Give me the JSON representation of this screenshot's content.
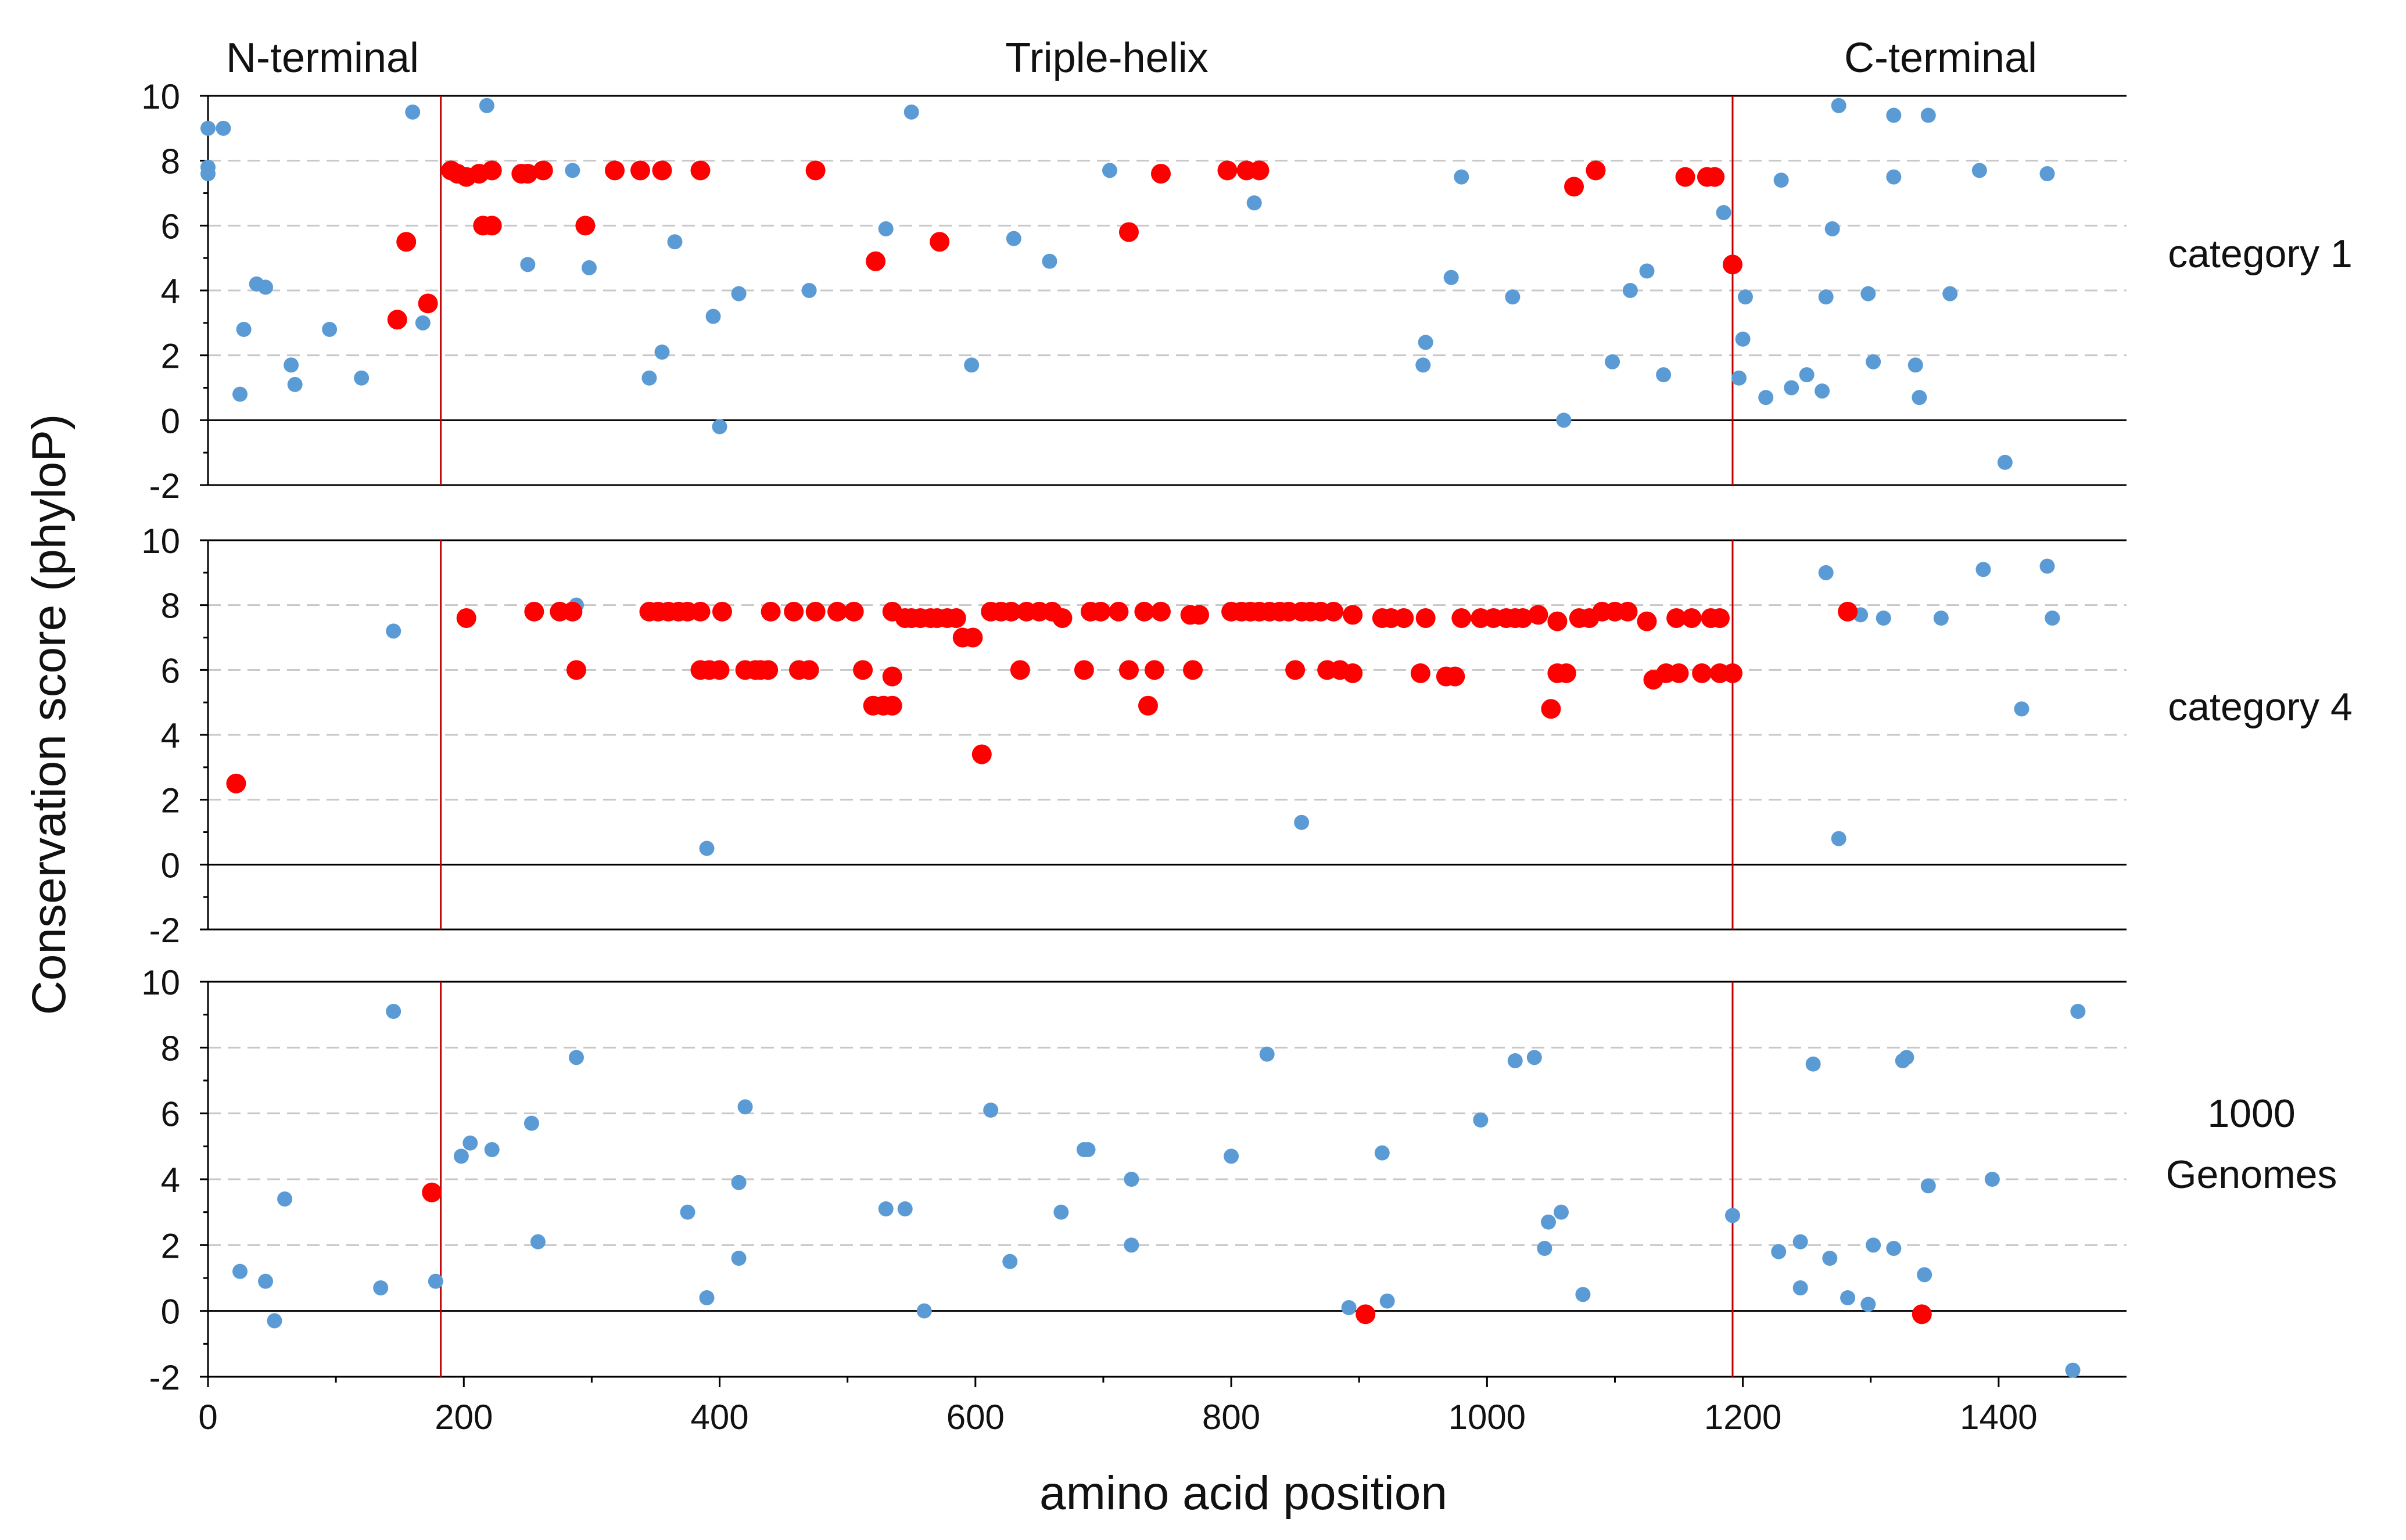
{
  "chart_data": {
    "type": "scatter",
    "ylabel": "Conservation score (phyloP)",
    "xlabel": "amino acid position",
    "x_ticks": [
      0,
      200,
      400,
      600,
      800,
      1000,
      1200,
      1400
    ],
    "x_tick_labels": [
      "0",
      "200",
      "400",
      "600",
      "800",
      "1000",
      "1200",
      "1400"
    ],
    "xlim": [
      0,
      1500
    ],
    "y_ticks": [
      -2,
      0,
      2,
      4,
      6,
      8,
      10
    ],
    "y_tick_labels": [
      "-2",
      "0",
      "2",
      "4",
      "6",
      "8",
      "10"
    ],
    "ylim": [
      -2,
      10
    ],
    "region_boundaries": [
      182,
      1192
    ],
    "regions": [
      "N-terminal",
      "Triple-helix",
      "C-terminal"
    ],
    "colors": {
      "blue": "#5b9bd5",
      "red": "#ff0000",
      "boundary": "#c00000",
      "grid": "#c8c8c8"
    },
    "panels": [
      {
        "label": "category 1",
        "blue": [
          [
            0,
            7.8
          ],
          [
            0,
            7.6
          ],
          [
            0,
            9.0
          ],
          [
            12,
            9.0
          ],
          [
            25,
            0.8
          ],
          [
            28,
            2.8
          ],
          [
            38,
            4.2
          ],
          [
            45,
            4.1
          ],
          [
            65,
            1.7
          ],
          [
            68,
            1.1
          ],
          [
            95,
            2.8
          ],
          [
            120,
            1.3
          ],
          [
            160,
            9.5
          ],
          [
            168,
            3.0
          ],
          [
            218,
            9.7
          ],
          [
            250,
            4.8
          ],
          [
            285,
            7.7
          ],
          [
            298,
            4.7
          ],
          [
            345,
            1.3
          ],
          [
            355,
            2.1
          ],
          [
            365,
            5.5
          ],
          [
            395,
            3.2
          ],
          [
            400,
            -0.2
          ],
          [
            415,
            3.9
          ],
          [
            470,
            4.0
          ],
          [
            530,
            5.9
          ],
          [
            550,
            9.5
          ],
          [
            597,
            1.7
          ],
          [
            630,
            5.6
          ],
          [
            658,
            4.9
          ],
          [
            705,
            7.7
          ],
          [
            818,
            6.7
          ],
          [
            950,
            1.7
          ],
          [
            952,
            2.4
          ],
          [
            972,
            4.4
          ],
          [
            980,
            7.5
          ],
          [
            1020,
            3.8
          ],
          [
            1060,
            0.0
          ],
          [
            1098,
            1.8
          ],
          [
            1112,
            4.0
          ],
          [
            1125,
            4.6
          ],
          [
            1138,
            1.4
          ],
          [
            1185,
            6.4
          ],
          [
            1197,
            1.3
          ],
          [
            1200,
            2.5
          ],
          [
            1202,
            3.8
          ],
          [
            1218,
            0.7
          ],
          [
            1230,
            7.4
          ],
          [
            1238,
            1.0
          ],
          [
            1250,
            1.4
          ],
          [
            1262,
            0.9
          ],
          [
            1265,
            3.8
          ],
          [
            1270,
            5.9
          ],
          [
            1275,
            9.7
          ],
          [
            1298,
            3.9
          ],
          [
            1302,
            1.8
          ],
          [
            1318,
            7.5
          ],
          [
            1318,
            9.4
          ],
          [
            1335,
            1.7
          ],
          [
            1338,
            0.7
          ],
          [
            1345,
            9.4
          ],
          [
            1362,
            3.9
          ],
          [
            1385,
            7.7
          ],
          [
            1405,
            -1.3
          ],
          [
            1438,
            7.6
          ]
        ],
        "red": [
          [
            148,
            3.1
          ],
          [
            155,
            5.5
          ],
          [
            172,
            3.6
          ],
          [
            190,
            7.7
          ],
          [
            195,
            7.6
          ],
          [
            202,
            7.5
          ],
          [
            212,
            7.6
          ],
          [
            215,
            6.0
          ],
          [
            222,
            6.0
          ],
          [
            222,
            7.7
          ],
          [
            245,
            7.6
          ],
          [
            250,
            7.6
          ],
          [
            262,
            7.7
          ],
          [
            295,
            6.0
          ],
          [
            318,
            7.7
          ],
          [
            338,
            7.7
          ],
          [
            355,
            7.7
          ],
          [
            385,
            7.7
          ],
          [
            475,
            7.7
          ],
          [
            522,
            4.9
          ],
          [
            572,
            5.5
          ],
          [
            720,
            5.8
          ],
          [
            745,
            7.6
          ],
          [
            797,
            7.7
          ],
          [
            812,
            7.7
          ],
          [
            822,
            7.7
          ],
          [
            1068,
            7.2
          ],
          [
            1085,
            7.7
          ],
          [
            1155,
            7.5
          ],
          [
            1172,
            7.5
          ],
          [
            1178,
            7.5
          ],
          [
            1192,
            4.8
          ]
        ]
      },
      {
        "label": "category 4",
        "blue": [
          [
            145,
            7.2
          ],
          [
            288,
            8.0
          ],
          [
            390,
            0.5
          ],
          [
            855,
            1.3
          ],
          [
            1265,
            9.0
          ],
          [
            1275,
            0.8
          ],
          [
            1292,
            7.7
          ],
          [
            1310,
            7.6
          ],
          [
            1355,
            7.6
          ],
          [
            1388,
            9.1
          ],
          [
            1418,
            4.8
          ],
          [
            1438,
            9.2
          ],
          [
            1442,
            7.6
          ]
        ],
        "red": [
          [
            22,
            2.5
          ],
          [
            202,
            7.6
          ],
          [
            255,
            7.8
          ],
          [
            275,
            7.8
          ],
          [
            285,
            7.8
          ],
          [
            288,
            6.0
          ],
          [
            345,
            7.8
          ],
          [
            352,
            7.8
          ],
          [
            360,
            7.8
          ],
          [
            368,
            7.8
          ],
          [
            375,
            7.8
          ],
          [
            385,
            7.8
          ],
          [
            385,
            6.0
          ],
          [
            392,
            6.0
          ],
          [
            400,
            6.0
          ],
          [
            402,
            7.8
          ],
          [
            420,
            6.0
          ],
          [
            428,
            6.0
          ],
          [
            432,
            6.0
          ],
          [
            438,
            6.0
          ],
          [
            440,
            7.8
          ],
          [
            458,
            7.8
          ],
          [
            462,
            6.0
          ],
          [
            470,
            6.0
          ],
          [
            475,
            7.8
          ],
          [
            492,
            7.8
          ],
          [
            505,
            7.8
          ],
          [
            512,
            6.0
          ],
          [
            520,
            4.9
          ],
          [
            528,
            4.9
          ],
          [
            535,
            4.9
          ],
          [
            535,
            5.8
          ],
          [
            535,
            7.8
          ],
          [
            545,
            7.6
          ],
          [
            550,
            7.6
          ],
          [
            557,
            7.6
          ],
          [
            565,
            7.6
          ],
          [
            570,
            7.6
          ],
          [
            578,
            7.6
          ],
          [
            585,
            7.6
          ],
          [
            590,
            7.0
          ],
          [
            598,
            7.0
          ],
          [
            605,
            3.4
          ],
          [
            612,
            7.8
          ],
          [
            620,
            7.8
          ],
          [
            628,
            7.8
          ],
          [
            635,
            6.0
          ],
          [
            640,
            7.8
          ],
          [
            650,
            7.8
          ],
          [
            660,
            7.8
          ],
          [
            668,
            7.6
          ],
          [
            685,
            6.0
          ],
          [
            690,
            7.8
          ],
          [
            698,
            7.8
          ],
          [
            712,
            7.8
          ],
          [
            720,
            6.0
          ],
          [
            732,
            7.8
          ],
          [
            735,
            4.9
          ],
          [
            740,
            6.0
          ],
          [
            745,
            7.8
          ],
          [
            768,
            7.7
          ],
          [
            770,
            6.0
          ],
          [
            775,
            7.7
          ],
          [
            800,
            7.8
          ],
          [
            808,
            7.8
          ],
          [
            815,
            7.8
          ],
          [
            822,
            7.8
          ],
          [
            830,
            7.8
          ],
          [
            838,
            7.8
          ],
          [
            845,
            7.8
          ],
          [
            850,
            6.0
          ],
          [
            855,
            7.8
          ],
          [
            862,
            7.8
          ],
          [
            870,
            7.8
          ],
          [
            875,
            6.0
          ],
          [
            880,
            7.8
          ],
          [
            885,
            6.0
          ],
          [
            895,
            5.9
          ],
          [
            895,
            7.7
          ],
          [
            918,
            7.6
          ],
          [
            925,
            7.6
          ],
          [
            935,
            7.6
          ],
          [
            948,
            5.9
          ],
          [
            952,
            7.6
          ],
          [
            968,
            5.8
          ],
          [
            975,
            5.8
          ],
          [
            980,
            7.6
          ],
          [
            995,
            7.6
          ],
          [
            1005,
            7.6
          ],
          [
            1015,
            7.6
          ],
          [
            1022,
            7.6
          ],
          [
            1028,
            7.6
          ],
          [
            1040,
            7.7
          ],
          [
            1050,
            4.8
          ],
          [
            1055,
            5.9
          ],
          [
            1055,
            7.5
          ],
          [
            1062,
            5.9
          ],
          [
            1072,
            7.6
          ],
          [
            1080,
            7.6
          ],
          [
            1090,
            7.8
          ],
          [
            1100,
            7.8
          ],
          [
            1110,
            7.8
          ],
          [
            1125,
            7.5
          ],
          [
            1130,
            5.7
          ],
          [
            1140,
            5.9
          ],
          [
            1148,
            7.6
          ],
          [
            1150,
            5.9
          ],
          [
            1160,
            7.6
          ],
          [
            1168,
            5.9
          ],
          [
            1175,
            7.6
          ],
          [
            1182,
            7.6
          ],
          [
            1182,
            5.9
          ],
          [
            1192,
            5.9
          ],
          [
            1282,
            7.8
          ]
        ]
      },
      {
        "label": "1000 Genomes",
        "blue": [
          [
            25,
            1.2
          ],
          [
            45,
            0.9
          ],
          [
            52,
            -0.3
          ],
          [
            60,
            3.4
          ],
          [
            135,
            0.7
          ],
          [
            145,
            9.1
          ],
          [
            178,
            0.9
          ],
          [
            198,
            4.7
          ],
          [
            205,
            5.1
          ],
          [
            222,
            4.9
          ],
          [
            253,
            5.7
          ],
          [
            258,
            2.1
          ],
          [
            288,
            7.7
          ],
          [
            375,
            3.0
          ],
          [
            390,
            0.4
          ],
          [
            415,
            3.9
          ],
          [
            415,
            1.6
          ],
          [
            420,
            6.2
          ],
          [
            530,
            3.1
          ],
          [
            545,
            3.1
          ],
          [
            560,
            0.0
          ],
          [
            612,
            6.1
          ],
          [
            627,
            1.5
          ],
          [
            667,
            3.0
          ],
          [
            685,
            4.9
          ],
          [
            688,
            4.9
          ],
          [
            722,
            2.0
          ],
          [
            722,
            4.0
          ],
          [
            800,
            4.7
          ],
          [
            828,
            7.8
          ],
          [
            892,
            0.1
          ],
          [
            918,
            4.8
          ],
          [
            922,
            0.3
          ],
          [
            995,
            5.8
          ],
          [
            1022,
            7.6
          ],
          [
            1037,
            7.7
          ],
          [
            1045,
            1.9
          ],
          [
            1048,
            2.7
          ],
          [
            1058,
            3.0
          ],
          [
            1075,
            0.5
          ],
          [
            1192,
            2.9
          ],
          [
            1228,
            1.8
          ],
          [
            1245,
            2.1
          ],
          [
            1245,
            0.7
          ],
          [
            1255,
            7.5
          ],
          [
            1268,
            1.6
          ],
          [
            1282,
            0.4
          ],
          [
            1298,
            0.2
          ],
          [
            1302,
            2.0
          ],
          [
            1318,
            1.9
          ],
          [
            1325,
            7.6
          ],
          [
            1328,
            7.7
          ],
          [
            1342,
            1.1
          ],
          [
            1345,
            3.8
          ],
          [
            1395,
            4.0
          ],
          [
            1458,
            -1.8
          ],
          [
            1462,
            9.1
          ]
        ],
        "red": [
          [
            175,
            3.6
          ],
          [
            905,
            -0.1
          ],
          [
            1340,
            -0.1
          ]
        ]
      }
    ]
  }
}
